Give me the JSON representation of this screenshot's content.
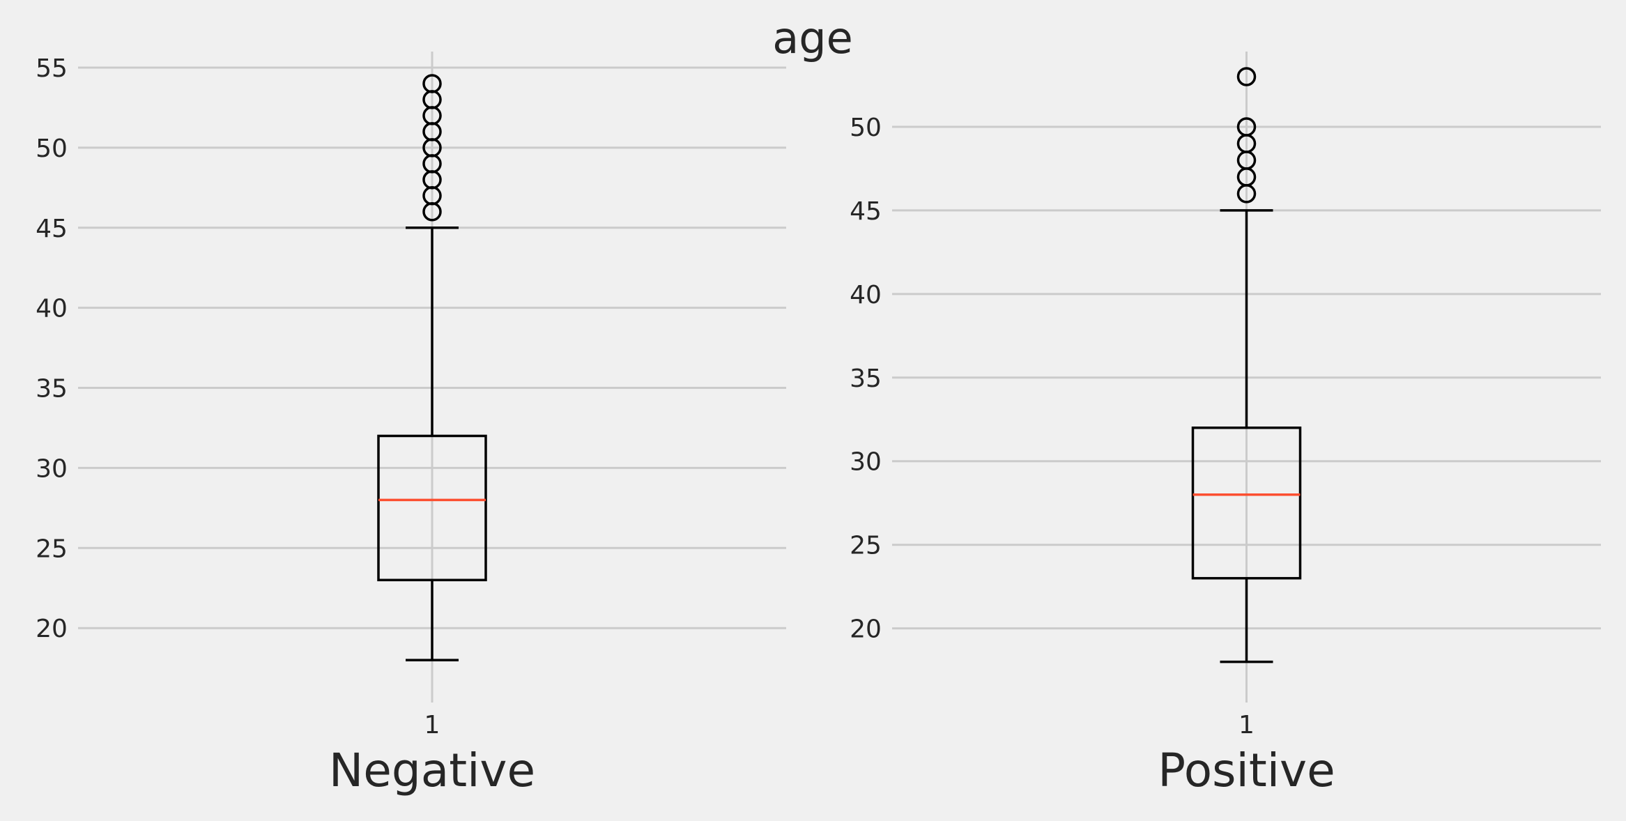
{
  "chart_data": {
    "title": "age",
    "type": "boxplot",
    "grid": true,
    "panels": [
      {
        "xlabel": "Negative",
        "xtick": "1",
        "ylim": [
          15.7,
          56
        ],
        "yticks": [
          20,
          25,
          30,
          35,
          40,
          45,
          50,
          55
        ],
        "stats": {
          "whislo": 18,
          "q1": 23,
          "med": 28,
          "q3": 32,
          "whishi": 45
        },
        "fliers": [
          46,
          47,
          48,
          49,
          50,
          51,
          52,
          53,
          54
        ]
      },
      {
        "xlabel": "Positive",
        "xtick": "1",
        "ylim": [
          15.9,
          54.5
        ],
        "yticks": [
          20,
          25,
          30,
          35,
          40,
          45,
          50
        ],
        "stats": {
          "whislo": 18,
          "q1": 23,
          "med": 28,
          "q3": 32,
          "whishi": 45
        },
        "fliers": [
          46,
          47,
          48,
          49,
          50,
          53
        ]
      }
    ],
    "colors": {
      "median": "#fc4f30",
      "box": "#000000",
      "grid": "#cbcbcb",
      "background": "#f0f0f0"
    }
  }
}
